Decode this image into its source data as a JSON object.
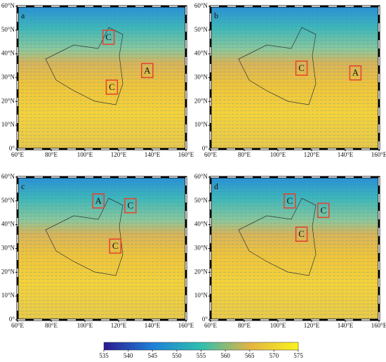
{
  "figure": {
    "lat_ticks": [
      {
        "value": 0,
        "label": "0°"
      },
      {
        "value": 10,
        "label": "10°N"
      },
      {
        "value": 20,
        "label": "20°N"
      },
      {
        "value": 30,
        "label": "30°N"
      },
      {
        "value": 40,
        "label": "40°N"
      },
      {
        "value": 50,
        "label": "50°N"
      },
      {
        "value": 60,
        "label": "60°N"
      }
    ],
    "lon_ticks": [
      {
        "value": 60,
        "label": "60°E"
      },
      {
        "value": 80,
        "label": "80°E"
      },
      {
        "value": 100,
        "label": "100°E"
      },
      {
        "value": 120,
        "label": "120°E"
      },
      {
        "value": 140,
        "label": "140°E"
      },
      {
        "value": 160,
        "label": "160°E"
      }
    ],
    "panels": [
      {
        "label": "a",
        "markers": [
          {
            "text": "C",
            "lon": 114,
            "lat": 47
          },
          {
            "text": "A",
            "lon": 137,
            "lat": 33
          },
          {
            "text": "C",
            "lon": 116,
            "lat": 26
          }
        ]
      },
      {
        "label": "b",
        "markers": [
          {
            "text": "C",
            "lon": 114,
            "lat": 34
          },
          {
            "text": "A",
            "lon": 146,
            "lat": 32
          }
        ]
      },
      {
        "label": "c",
        "markers": [
          {
            "text": "A",
            "lon": 108,
            "lat": 50
          },
          {
            "text": "C",
            "lon": 127,
            "lat": 48
          },
          {
            "text": "C",
            "lon": 118,
            "lat": 31
          }
        ]
      },
      {
        "label": "d",
        "markers": [
          {
            "text": "C",
            "lon": 107,
            "lat": 50
          },
          {
            "text": "C",
            "lon": 127,
            "lat": 46
          },
          {
            "text": "C",
            "lon": 114,
            "lat": 36
          }
        ]
      }
    ],
    "colorbar": {
      "lim": [
        535,
        575
      ],
      "ticks": [
        535,
        540,
        545,
        550,
        555,
        560,
        565,
        570,
        575
      ]
    }
  }
}
